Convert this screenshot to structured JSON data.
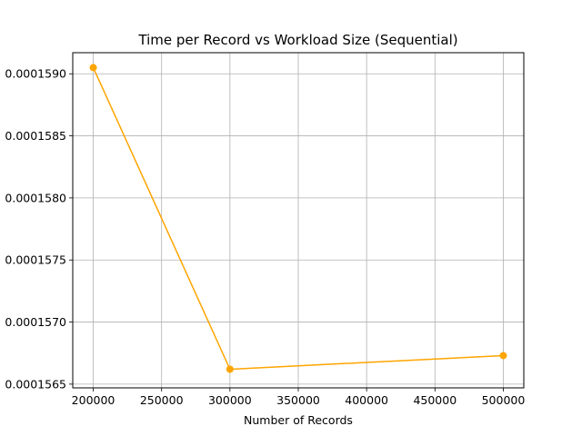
{
  "chart_data": {
    "type": "line",
    "title": "Time per Record vs Workload Size (Sequential)",
    "xlabel": "Number of Records",
    "ylabel": "",
    "x": [
      200000,
      300000,
      500000
    ],
    "series": [
      {
        "values": [
          0.00015905,
          0.00015662,
          0.00015673
        ],
        "color": "#ffa500",
        "marker": "circle"
      }
    ],
    "xticks": [
      200000,
      250000,
      300000,
      350000,
      400000,
      450000,
      500000
    ],
    "xtick_labels": [
      "200000",
      "250000",
      "300000",
      "350000",
      "400000",
      "450000",
      "500000"
    ],
    "yticks": [
      0.0001565,
      0.000157,
      0.0001575,
      0.000158,
      0.0001585,
      0.000159
    ],
    "ytick_labels": [
      "0.0001565",
      "0.0001570",
      "0.0001575",
      "0.0001580",
      "0.0001585",
      "0.0001590"
    ],
    "xlim": [
      185000,
      515000
    ],
    "ylim": [
      0.00015647,
      0.00015917
    ],
    "grid": true,
    "grid_color": "#b0b0b0"
  }
}
